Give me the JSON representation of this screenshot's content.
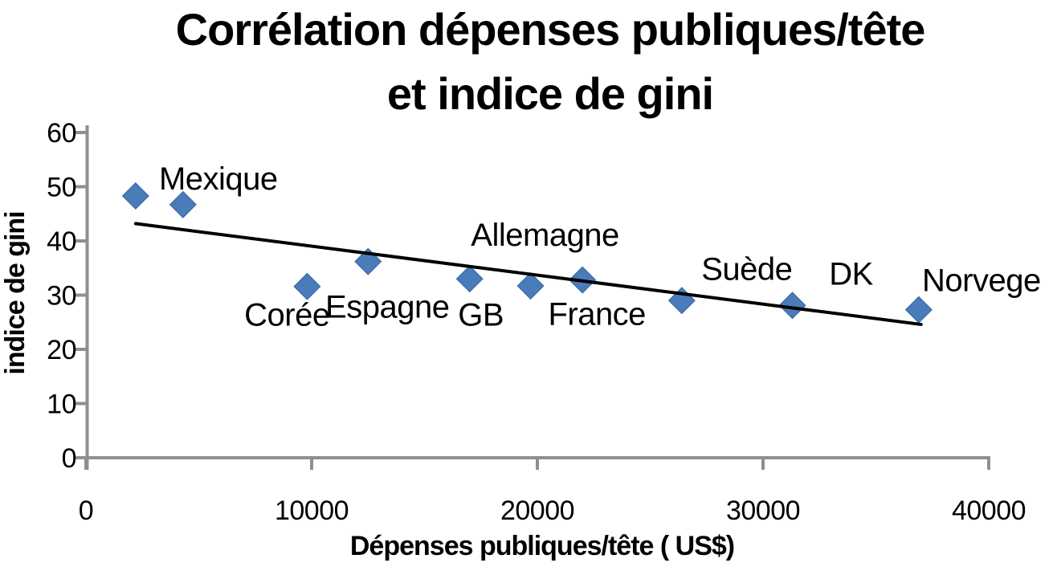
{
  "chart_data": {
    "type": "scatter",
    "title": "Corrélation dépenses publiques/tête et indice de gini",
    "title_lines": [
      "Corrélation dépenses publiques/tête",
      "et indice de gini"
    ],
    "xlabel": "Dépenses publiques/tête ( US$)",
    "ylabel": "indice de gini",
    "xlim": [
      0,
      40000
    ],
    "ylim": [
      0,
      60
    ],
    "x_ticks": [
      0,
      10000,
      20000,
      30000,
      40000
    ],
    "y_ticks": [
      0,
      10,
      20,
      30,
      40,
      50,
      60
    ],
    "grid": false,
    "legend": false,
    "marker_shape": "diamond",
    "points": [
      {
        "label": "",
        "x": 2200,
        "y": 48.3,
        "label_offset": [
          0,
          0
        ]
      },
      {
        "label": "Mexique",
        "x": 4300,
        "y": 46.7,
        "label_offset": [
          44,
          -33
        ]
      },
      {
        "label": "Corée",
        "x": 9800,
        "y": 31.6,
        "label_offset": [
          -25,
          35
        ]
      },
      {
        "label": "Espagne",
        "x": 12500,
        "y": 36.2,
        "label_offset": [
          24,
          56
        ]
      },
      {
        "label": "GB",
        "x": 17000,
        "y": 33.0,
        "label_offset": [
          14,
          44
        ]
      },
      {
        "label": "Allemagne",
        "x": 19700,
        "y": 31.7,
        "label_offset": [
          18,
          -64
        ]
      },
      {
        "label": "France",
        "x": 22000,
        "y": 32.8,
        "label_offset": [
          18,
          42
        ]
      },
      {
        "label": "Suède",
        "x": 26400,
        "y": 29.0,
        "label_offset": [
          81,
          -40
        ]
      },
      {
        "label": "DK",
        "x": 31300,
        "y": 28.1,
        "label_offset": [
          73,
          -40
        ]
      },
      {
        "label": "Norvege",
        "x": 36900,
        "y": 27.3,
        "label_offset": [
          78,
          -37
        ]
      }
    ],
    "trendline": {
      "type": "linear",
      "x1": 2200,
      "y1": 43.2,
      "x2": 37000,
      "y2": 24.6
    }
  },
  "colors": {
    "marker_fill": "#4A7CBA",
    "marker_edge": "#3E6FA8",
    "trendline": "#000000",
    "axis": "#8F8F8F",
    "text": "#000000",
    "background": "#FFFFFF"
  }
}
